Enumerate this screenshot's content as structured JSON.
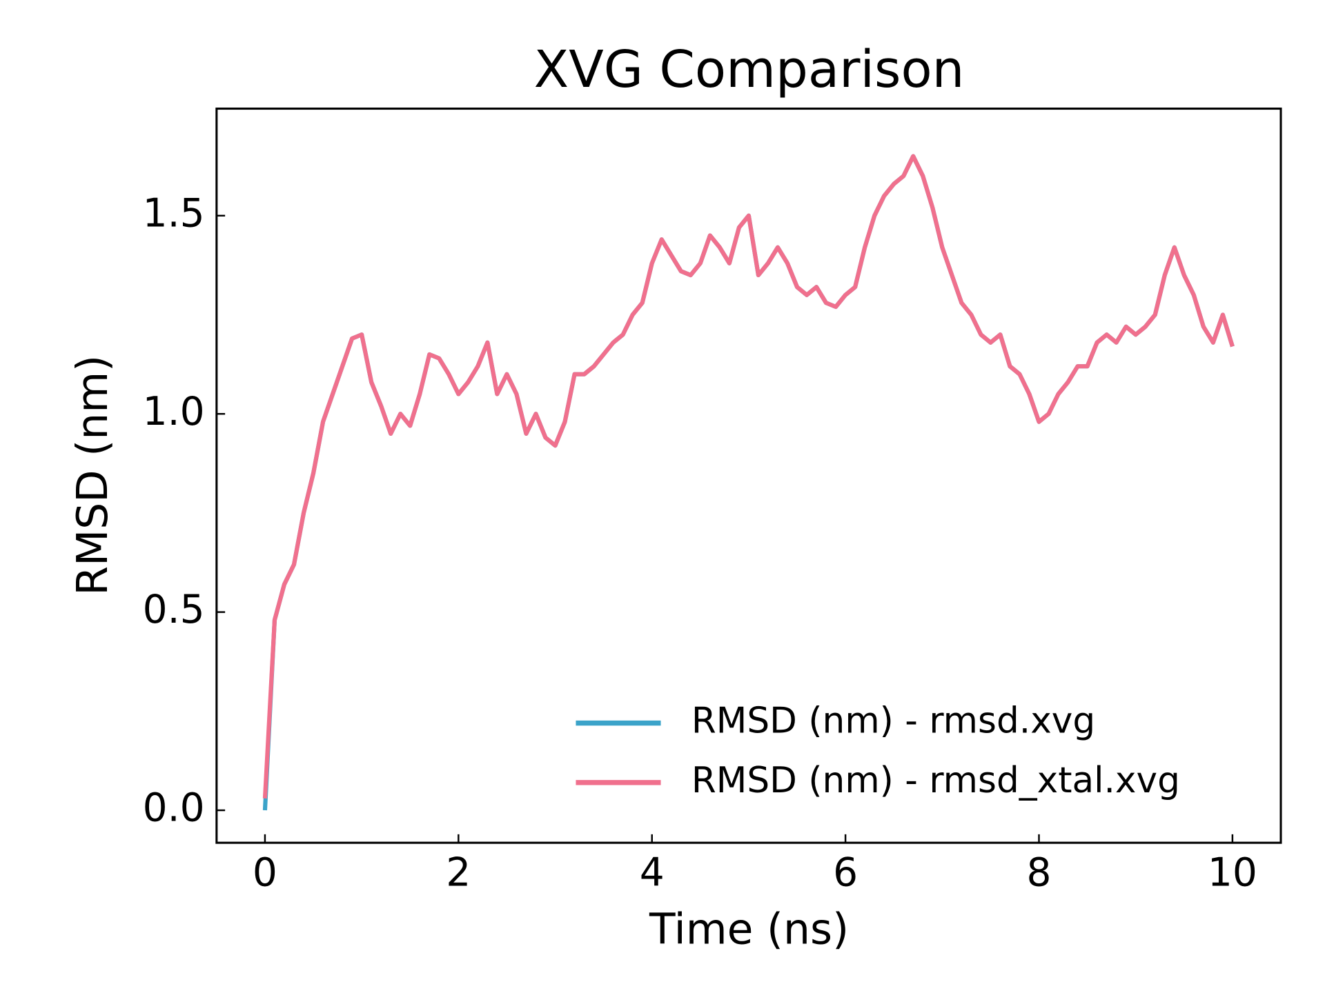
{
  "chart_data": {
    "type": "line",
    "title": "XVG Comparison",
    "x_label": "Time (ns)",
    "y_label": "RMSD (nm)",
    "x": [
      0,
      0.1,
      0.2,
      0.3,
      0.4,
      0.5,
      0.6,
      0.7,
      0.8,
      0.9,
      1.0,
      1.1,
      1.2,
      1.3,
      1.4,
      1.5,
      1.6,
      1.7,
      1.8,
      1.9,
      2.0,
      2.1,
      2.2,
      2.3,
      2.4,
      2.5,
      2.6,
      2.7,
      2.8,
      2.9,
      3.0,
      3.1,
      3.2,
      3.3,
      3.4,
      3.5,
      3.6,
      3.7,
      3.8,
      3.9,
      4.0,
      4.1,
      4.2,
      4.3,
      4.4,
      4.5,
      4.6,
      4.7,
      4.8,
      4.9,
      5.0,
      5.1,
      5.2,
      5.3,
      5.4,
      5.5,
      5.6,
      5.7,
      5.8,
      5.9,
      6.0,
      6.1,
      6.2,
      6.3,
      6.4,
      6.5,
      6.6,
      6.7,
      6.8,
      6.9,
      7.0,
      7.1,
      7.2,
      7.3,
      7.4,
      7.5,
      7.6,
      7.7,
      7.8,
      7.9,
      8.0,
      8.1,
      8.2,
      8.3,
      8.4,
      8.5,
      8.6,
      8.7,
      8.8,
      8.9,
      9.0,
      9.1,
      9.2,
      9.3,
      9.4,
      9.5,
      9.6,
      9.7,
      9.8,
      9.9,
      10.0
    ],
    "series": [
      {
        "name": "RMSD (nm) - rmsd.xvg",
        "color": "#3ba3c9",
        "values": [
          0,
          0.48,
          0.57,
          0.62,
          0.75,
          0.85,
          0.98,
          1.05,
          1.12,
          1.19,
          1.2,
          1.08,
          1.02,
          0.95,
          1.0,
          0.97,
          1.05,
          1.15,
          1.14,
          1.1,
          1.05,
          1.08,
          1.12,
          1.18,
          1.05,
          1.1,
          1.05,
          0.95,
          1.0,
          0.94,
          0.92,
          0.98,
          1.1,
          1.1,
          1.12,
          1.15,
          1.18,
          1.2,
          1.25,
          1.28,
          1.38,
          1.44,
          1.4,
          1.36,
          1.35,
          1.38,
          1.45,
          1.42,
          1.38,
          1.47,
          1.5,
          1.35,
          1.38,
          1.42,
          1.38,
          1.32,
          1.3,
          1.32,
          1.28,
          1.27,
          1.3,
          1.32,
          1.42,
          1.5,
          1.55,
          1.58,
          1.6,
          1.65,
          1.6,
          1.52,
          1.42,
          1.35,
          1.28,
          1.25,
          1.2,
          1.18,
          1.2,
          1.12,
          1.1,
          1.05,
          0.98,
          1.0,
          1.05,
          1.08,
          1.12,
          1.12,
          1.18,
          1.2,
          1.18,
          1.22,
          1.2,
          1.22,
          1.25,
          1.35,
          1.42,
          1.35,
          1.3,
          1.22,
          1.18,
          1.25,
          1.17
        ]
      },
      {
        "name": "RMSD (nm) - rmsd_xtal.xvg",
        "color": "#f0708d",
        "values": [
          0.03,
          0.48,
          0.57,
          0.62,
          0.75,
          0.85,
          0.98,
          1.05,
          1.12,
          1.19,
          1.2,
          1.08,
          1.02,
          0.95,
          1.0,
          0.97,
          1.05,
          1.15,
          1.14,
          1.1,
          1.05,
          1.08,
          1.12,
          1.18,
          1.05,
          1.1,
          1.05,
          0.95,
          1.0,
          0.94,
          0.92,
          0.98,
          1.1,
          1.1,
          1.12,
          1.15,
          1.18,
          1.2,
          1.25,
          1.28,
          1.38,
          1.44,
          1.4,
          1.36,
          1.35,
          1.38,
          1.45,
          1.42,
          1.38,
          1.47,
          1.5,
          1.35,
          1.38,
          1.42,
          1.38,
          1.32,
          1.3,
          1.32,
          1.28,
          1.27,
          1.3,
          1.32,
          1.42,
          1.5,
          1.55,
          1.58,
          1.6,
          1.65,
          1.6,
          1.52,
          1.42,
          1.35,
          1.28,
          1.25,
          1.2,
          1.18,
          1.2,
          1.12,
          1.1,
          1.05,
          0.98,
          1.0,
          1.05,
          1.08,
          1.12,
          1.12,
          1.18,
          1.2,
          1.18,
          1.22,
          1.2,
          1.22,
          1.25,
          1.35,
          1.42,
          1.35,
          1.3,
          1.22,
          1.18,
          1.25,
          1.17
        ]
      }
    ],
    "xlim": [
      -0.5,
      10.5
    ],
    "xticks": [
      0,
      2,
      4,
      6,
      8,
      10
    ],
    "ylim": [
      -0.082,
      1.77
    ],
    "yticks": [
      {
        "value": 0,
        "label": "0.0"
      },
      {
        "value": 0.5,
        "label": "0.5"
      },
      {
        "value": 1,
        "label": "1.0"
      },
      {
        "value": 1.5,
        "label": "1.5"
      }
    ],
    "grid": false,
    "legend": "lower right"
  }
}
